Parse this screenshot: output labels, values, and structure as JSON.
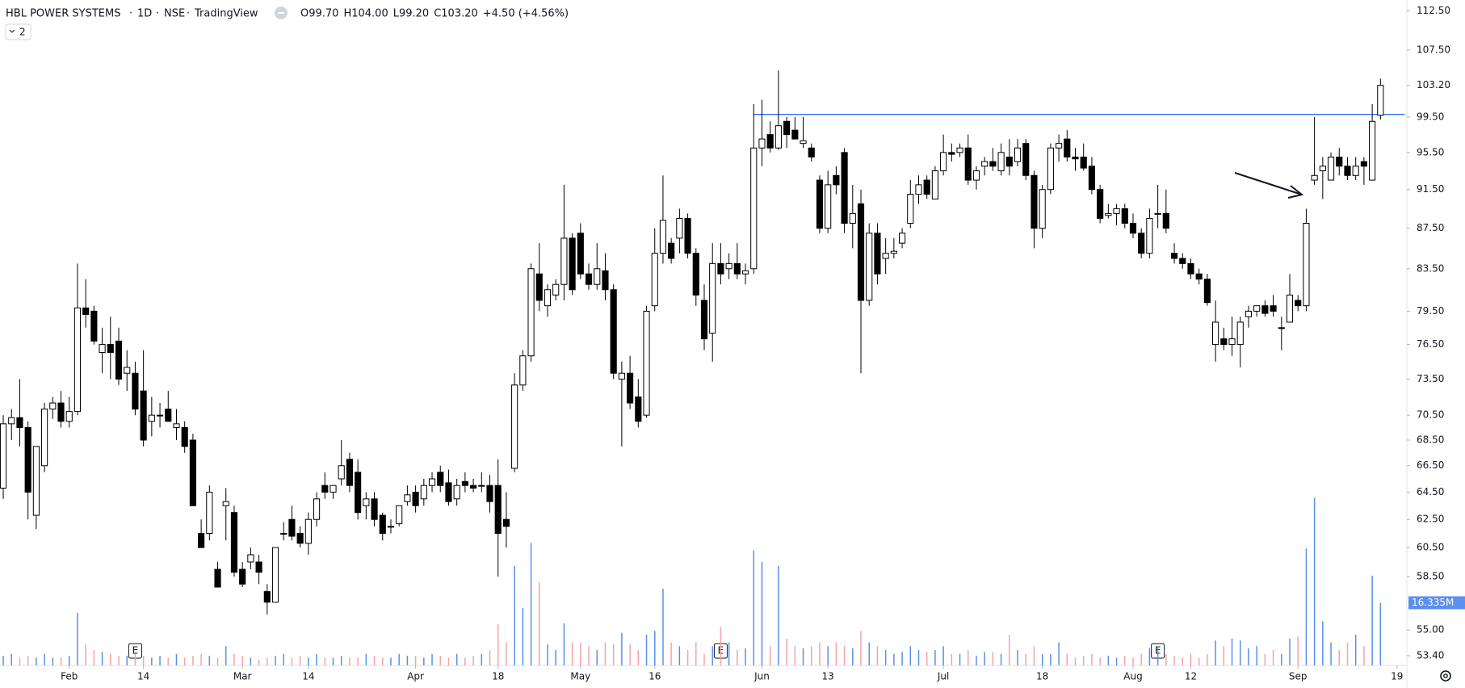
{
  "chart_data": {
    "type": "candlestick",
    "header": {
      "symbol": "HBL POWER SYSTEMS",
      "interval": "1D",
      "exchange": "NSE",
      "source": "TradingView",
      "ohlc": [
        "O99.70",
        "H104.00",
        "L99.20",
        "C103.20",
        "+4.50 (+4.56%)"
      ],
      "indicator_count": "2"
    },
    "candles": [
      [
        64.8,
        70.5,
        64,
        69.8
      ],
      [
        69.8,
        71,
        68.5,
        70.3
      ],
      [
        70.3,
        73.5,
        68,
        69.5
      ],
      [
        69.5,
        70,
        62.5,
        64.5
      ],
      [
        62.8,
        68,
        61.8,
        68
      ],
      [
        66.5,
        71.5,
        66,
        71
      ],
      [
        71,
        72,
        70.2,
        71.5
      ],
      [
        71.5,
        72.5,
        69.5,
        70
      ],
      [
        70,
        72,
        69.5,
        70.8
      ],
      [
        70.8,
        84,
        70.5,
        79.8
      ],
      [
        79.8,
        82.5,
        78,
        79.2
      ],
      [
        79.5,
        80,
        76.5,
        76.8
      ],
      [
        75.8,
        78,
        74,
        76.5
      ],
      [
        76.5,
        79,
        73.5,
        75.8
      ],
      [
        76.8,
        78,
        73,
        73.5
      ],
      [
        74,
        76,
        72.5,
        74.5
      ],
      [
        74,
        75,
        70.5,
        71
      ],
      [
        72.5,
        76,
        68,
        68.5
      ],
      [
        70,
        72,
        68.8,
        70.5
      ],
      [
        70.5,
        71.5,
        69.5,
        70.5
      ],
      [
        71,
        72.5,
        70,
        70
      ],
      [
        69.5,
        71,
        68.5,
        69.8
      ],
      [
        69.5,
        70,
        67.5,
        68
      ],
      [
        68.5,
        69,
        63.5,
        63.5
      ],
      [
        61.5,
        62.5,
        60.5,
        60.5
      ],
      [
        61.5,
        65,
        61,
        64.5
      ],
      [
        59,
        59.5,
        57.8,
        57.8
      ],
      [
        63.5,
        64.8,
        61,
        63.8
      ],
      [
        63,
        63.5,
        58.5,
        58.8
      ],
      [
        59,
        59.5,
        57.8,
        58
      ],
      [
        59.5,
        60.5,
        59,
        60
      ],
      [
        59.5,
        60,
        58,
        58.8
      ],
      [
        57.5,
        58,
        56,
        56.8
      ],
      [
        56.8,
        60.5,
        56.8,
        60.5
      ],
      [
        61.5,
        62.3,
        61,
        61.5
      ],
      [
        62.5,
        63.5,
        61,
        61.3
      ],
      [
        61.5,
        62,
        60.5,
        60.8
      ],
      [
        60.8,
        63,
        60,
        62.5
      ],
      [
        62.5,
        64.5,
        62,
        64
      ],
      [
        65,
        66,
        64,
        64.5
      ],
      [
        64.5,
        65,
        64,
        65
      ],
      [
        65.5,
        68.5,
        65,
        66.5
      ],
      [
        67,
        67.5,
        64.5,
        65
      ],
      [
        66,
        67,
        62.5,
        63
      ],
      [
        63.5,
        64.5,
        62.5,
        64
      ],
      [
        64,
        64.5,
        62,
        62.5
      ],
      [
        62.8,
        63,
        61,
        61.5
      ],
      [
        62,
        62.5,
        61.5,
        62
      ],
      [
        62.2,
        63.5,
        62,
        63.5
      ],
      [
        63.8,
        65,
        63.5,
        64.3
      ],
      [
        64.5,
        65,
        63,
        63.5
      ],
      [
        64,
        65.5,
        63.5,
        65
      ],
      [
        65,
        66,
        64.5,
        65.5
      ],
      [
        66,
        66.5,
        64.5,
        65
      ],
      [
        65.2,
        66.2,
        63.5,
        63.8
      ],
      [
        64,
        65.5,
        63.5,
        65
      ],
      [
        65.3,
        66,
        64.5,
        65
      ],
      [
        65,
        65.5,
        64.5,
        64.8
      ],
      [
        65,
        66,
        64.5,
        65
      ],
      [
        65,
        65.8,
        63,
        63.8
      ],
      [
        65,
        67,
        58.5,
        61.5
      ],
      [
        62.5,
        64.5,
        60.5,
        62
      ],
      [
        66.3,
        74,
        66,
        73
      ],
      [
        73,
        76,
        72.5,
        75.5
      ],
      [
        75.5,
        84,
        75,
        83.5
      ],
      [
        83,
        86,
        79.5,
        80.5
      ],
      [
        80,
        82,
        79,
        81.5
      ],
      [
        81,
        82.5,
        80.5,
        82
      ],
      [
        82,
        92,
        80.5,
        86.5
      ],
      [
        86.5,
        87,
        81,
        81.5
      ],
      [
        87,
        88,
        82.5,
        83
      ],
      [
        83,
        84,
        81.5,
        82
      ],
      [
        82,
        86,
        81.5,
        83.5
      ],
      [
        83.3,
        85,
        80.5,
        81.5
      ],
      [
        81.5,
        82,
        73.5,
        74
      ],
      [
        73.5,
        75,
        68,
        74
      ],
      [
        74,
        75.5,
        71,
        71.5
      ],
      [
        72,
        73.5,
        69.5,
        70
      ],
      [
        70.5,
        80,
        70.3,
        79.5
      ],
      [
        80,
        87.5,
        79.5,
        85
      ],
      [
        85,
        93,
        84,
        88.3
      ],
      [
        86,
        86.5,
        84,
        84.5
      ],
      [
        86.5,
        89.5,
        85,
        88.5
      ],
      [
        88.5,
        89,
        84.5,
        85
      ],
      [
        85,
        85.5,
        80,
        81
      ],
      [
        80.5,
        82,
        76,
        77
      ],
      [
        77.5,
        86,
        75,
        84
      ],
      [
        84,
        86,
        82,
        83
      ],
      [
        83.5,
        85,
        82.5,
        84
      ],
      [
        84,
        86,
        82.5,
        83
      ],
      [
        83,
        84,
        82,
        83.3
      ],
      [
        83.5,
        101,
        83,
        96
      ],
      [
        96,
        101.5,
        94,
        97
      ],
      [
        97.5,
        99,
        95.5,
        96
      ],
      [
        96,
        105,
        95.8,
        98.5
      ],
      [
        99,
        99.5,
        96,
        97.5
      ],
      [
        98,
        99.5,
        97,
        97
      ],
      [
        96.5,
        99.5,
        96,
        96.8
      ],
      [
        96,
        96.5,
        94.5,
        95
      ],
      [
        92.5,
        93,
        87,
        87.5
      ],
      [
        87.5,
        93.5,
        87,
        92
      ],
      [
        93,
        94,
        91,
        92
      ],
      [
        95.5,
        96,
        87,
        88
      ],
      [
        88,
        92,
        85.5,
        89
      ],
      [
        90,
        91.5,
        74,
        80.5
      ],
      [
        80.5,
        88,
        80,
        87
      ],
      [
        87,
        88,
        82,
        83
      ],
      [
        84.5,
        86.5,
        83,
        85
      ],
      [
        85,
        86.5,
        84.5,
        85.2
      ],
      [
        86,
        87.5,
        85.5,
        87
      ],
      [
        88,
        92.5,
        87.5,
        91
      ],
      [
        91,
        93,
        90,
        92
      ],
      [
        92.5,
        93,
        90.5,
        91
      ],
      [
        90.5,
        94,
        90.5,
        93.5
      ],
      [
        93.5,
        97.5,
        93,
        95.5
      ],
      [
        95.5,
        96.5,
        94.5,
        95.3
      ],
      [
        95.5,
        96.5,
        95,
        96
      ],
      [
        96,
        97.5,
        92,
        92.5
      ],
      [
        92.5,
        94,
        91.5,
        93.5
      ],
      [
        94,
        95,
        93,
        94.5
      ],
      [
        94.5,
        96,
        93.5,
        94
      ],
      [
        93.5,
        96.5,
        93,
        95.5
      ],
      [
        95,
        97,
        93,
        94
      ],
      [
        94.5,
        97,
        94,
        96
      ],
      [
        96.5,
        97,
        92.5,
        93
      ],
      [
        93,
        93.5,
        85.5,
        87.5
      ],
      [
        87.5,
        92,
        86.5,
        91.5
      ],
      [
        91.5,
        96.5,
        91,
        96
      ],
      [
        96,
        97.5,
        94.5,
        96.5
      ],
      [
        97,
        98,
        94.5,
        95
      ],
      [
        95,
        96,
        93.5,
        94.8
      ],
      [
        95,
        96.5,
        93.5,
        93.8
      ],
      [
        94,
        95,
        91,
        91.5
      ],
      [
        91.5,
        92,
        88,
        88.5
      ],
      [
        88.8,
        90,
        88.5,
        89
      ],
      [
        89,
        90,
        87.8,
        89.5
      ],
      [
        89.5,
        90,
        87.5,
        88
      ],
      [
        88,
        89,
        86.5,
        87
      ],
      [
        87,
        87.5,
        84.5,
        85
      ],
      [
        85,
        89.5,
        84.5,
        88.5
      ],
      [
        89,
        92,
        87.5,
        89
      ],
      [
        89,
        91.5,
        87,
        87.5
      ],
      [
        85,
        86,
        84,
        84.5
      ],
      [
        84.5,
        85,
        83.5,
        84
      ],
      [
        84,
        84.5,
        82.5,
        83
      ],
      [
        83,
        83.5,
        82,
        82.5
      ],
      [
        82.5,
        83,
        80,
        80.3
      ],
      [
        76.5,
        80.5,
        75,
        78.5
      ],
      [
        77,
        78,
        76,
        76.5
      ],
      [
        76.5,
        79,
        75.5,
        77
      ],
      [
        76.5,
        79,
        74.5,
        78.5
      ],
      [
        79,
        80,
        78,
        79.5
      ],
      [
        79.5,
        80,
        79,
        80
      ],
      [
        80,
        80.5,
        79,
        79.3
      ],
      [
        80,
        81,
        79,
        79.5
      ],
      [
        78,
        79,
        76,
        78
      ],
      [
        78.5,
        83,
        78.5,
        81
      ],
      [
        80.5,
        81,
        79.5,
        80
      ],
      [
        80,
        89.5,
        79.5,
        88
      ],
      [
        92.5,
        99.5,
        92,
        93
      ],
      [
        93.5,
        95,
        90.5,
        94
      ],
      [
        92.5,
        95.5,
        92.5,
        95
      ],
      [
        95,
        96,
        93,
        94
      ],
      [
        94,
        95,
        92.5,
        93
      ],
      [
        93,
        95,
        92.5,
        94
      ],
      [
        94.5,
        95,
        92,
        94
      ],
      [
        92.5,
        101,
        92.5,
        99
      ],
      [
        99.7,
        104,
        99.2,
        103.2
      ]
    ],
    "volumes": [
      2.5,
      3,
      2,
      2.5,
      2,
      3,
      2,
      2,
      2.5,
      13.7,
      5.5,
      4,
      3.5,
      3,
      2.5,
      2.5,
      3,
      2.5,
      2,
      2.5,
      2,
      3,
      2,
      2.5,
      3,
      2.5,
      2,
      5,
      3,
      2.5,
      2,
      1.5,
      2,
      2.5,
      3,
      2,
      2.5,
      2,
      3,
      2,
      2,
      2.5,
      2,
      2,
      3,
      2.5,
      2,
      2,
      3,
      2.5,
      2.5,
      2,
      3,
      2.5,
      2,
      3,
      2,
      2.5,
      3,
      4,
      10.7,
      6,
      26,
      15,
      32,
      21.7,
      5.5,
      4,
      11,
      6,
      6,
      5,
      4,
      6,
      5.5,
      8.5,
      5.5,
      4,
      8,
      9,
      20,
      6,
      5,
      4,
      6,
      3,
      5,
      10,
      6,
      4,
      4.5,
      30,
      27,
      5,
      26,
      7,
      5,
      4.5,
      5,
      6,
      5,
      6,
      5,
      4.5,
      9,
      6,
      5,
      4,
      3,
      3.5,
      5,
      4,
      3.5,
      4,
      5,
      3,
      3,
      4,
      2.5,
      3.5,
      3.5,
      3,
      8,
      4,
      3,
      5,
      3,
      3,
      6,
      3,
      2,
      2.5,
      3,
      2,
      2.5,
      2,
      2.5,
      2,
      3,
      4.5,
      5,
      3,
      2.5,
      2,
      3,
      2,
      3,
      6.5,
      5,
      7,
      6.5,
      4.5,
      5,
      3,
      4,
      3,
      7,
      7.5,
      30.5,
      43.7,
      11.5,
      6,
      4,
      6,
      8,
      5,
      23.4,
      16.335
    ],
    "last_volume_label": "16.335M",
    "volume_lim": [
      0,
      173.6
    ],
    "earnings": [
      16,
      87,
      140
    ],
    "earnings_label": "E",
    "hline": 99.8,
    "hline_start": 91,
    "hline_color": "#2962ff",
    "up_color": "#ffffff",
    "down_color": "#000000",
    "vol_up_color": "#5b8ff0",
    "vol_down_color": "#f4a3a8",
    "log_scale": true,
    "xlim": [
      -0.2,
      170.2
    ],
    "xticks": [
      {
        "value": 8,
        "label": "Feb"
      },
      {
        "value": 17,
        "label": "14"
      },
      {
        "value": 29,
        "label": "Mar"
      },
      {
        "value": 37,
        "label": "14"
      },
      {
        "value": 50,
        "label": "Apr"
      },
      {
        "value": 60,
        "label": "18"
      },
      {
        "value": 70,
        "label": "May"
      },
      {
        "value": 79,
        "label": "16"
      },
      {
        "value": 92,
        "label": "Jun"
      },
      {
        "value": 100,
        "label": "13"
      },
      {
        "value": 114,
        "label": "Jul"
      },
      {
        "value": 126,
        "label": "18"
      },
      {
        "value": 137,
        "label": "Aug"
      },
      {
        "value": 144,
        "label": "12"
      },
      {
        "value": 157,
        "label": "Sep"
      },
      {
        "value": 169,
        "label": "19"
      }
    ],
    "ylim": [
      52.8,
      113.9
    ],
    "yticks": [
      {
        "value": 112.5,
        "label": "112.50"
      },
      {
        "value": 107.5,
        "label": "107.50"
      },
      {
        "value": 103.2,
        "label": "103.20"
      },
      {
        "value": 99.5,
        "label": "99.50"
      },
      {
        "value": 95.5,
        "label": "95.50"
      },
      {
        "value": 91.5,
        "label": "91.50"
      },
      {
        "value": 87.5,
        "label": "87.50"
      },
      {
        "value": 83.5,
        "label": "83.50"
      },
      {
        "value": 79.5,
        "label": "79.50"
      },
      {
        "value": 76.5,
        "label": "76.50"
      },
      {
        "value": 73.5,
        "label": "73.50"
      },
      {
        "value": 70.5,
        "label": "70.50"
      },
      {
        "value": 68.5,
        "label": "68.50"
      },
      {
        "value": 66.5,
        "label": "66.50"
      },
      {
        "value": 64.5,
        "label": "64.50"
      },
      {
        "value": 62.5,
        "label": "62.50"
      },
      {
        "value": 60.5,
        "label": "60.50"
      },
      {
        "value": 58.5,
        "label": "58.50"
      },
      {
        "value": 55,
        "label": "55.00"
      },
      {
        "value": 53.4,
        "label": "53.40"
      }
    ]
  }
}
